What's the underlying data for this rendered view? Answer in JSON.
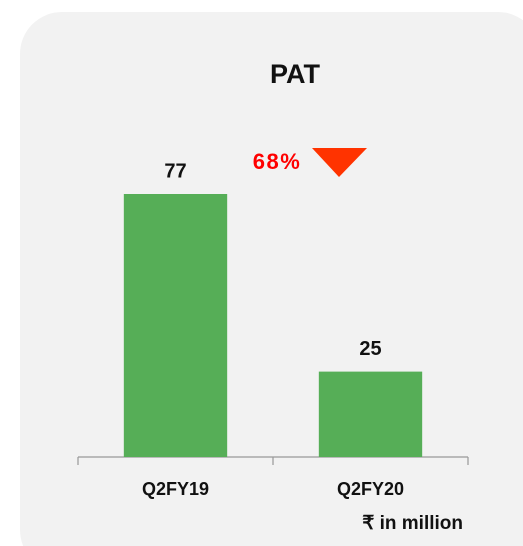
{
  "chart_data": {
    "type": "bar",
    "title": "PAT",
    "categories": [
      "Q2FY19",
      "Q2FY20"
    ],
    "values": [
      77,
      25
    ],
    "color": "#56ae57",
    "annotation": "68%",
    "note": "₹ in million"
  }
}
